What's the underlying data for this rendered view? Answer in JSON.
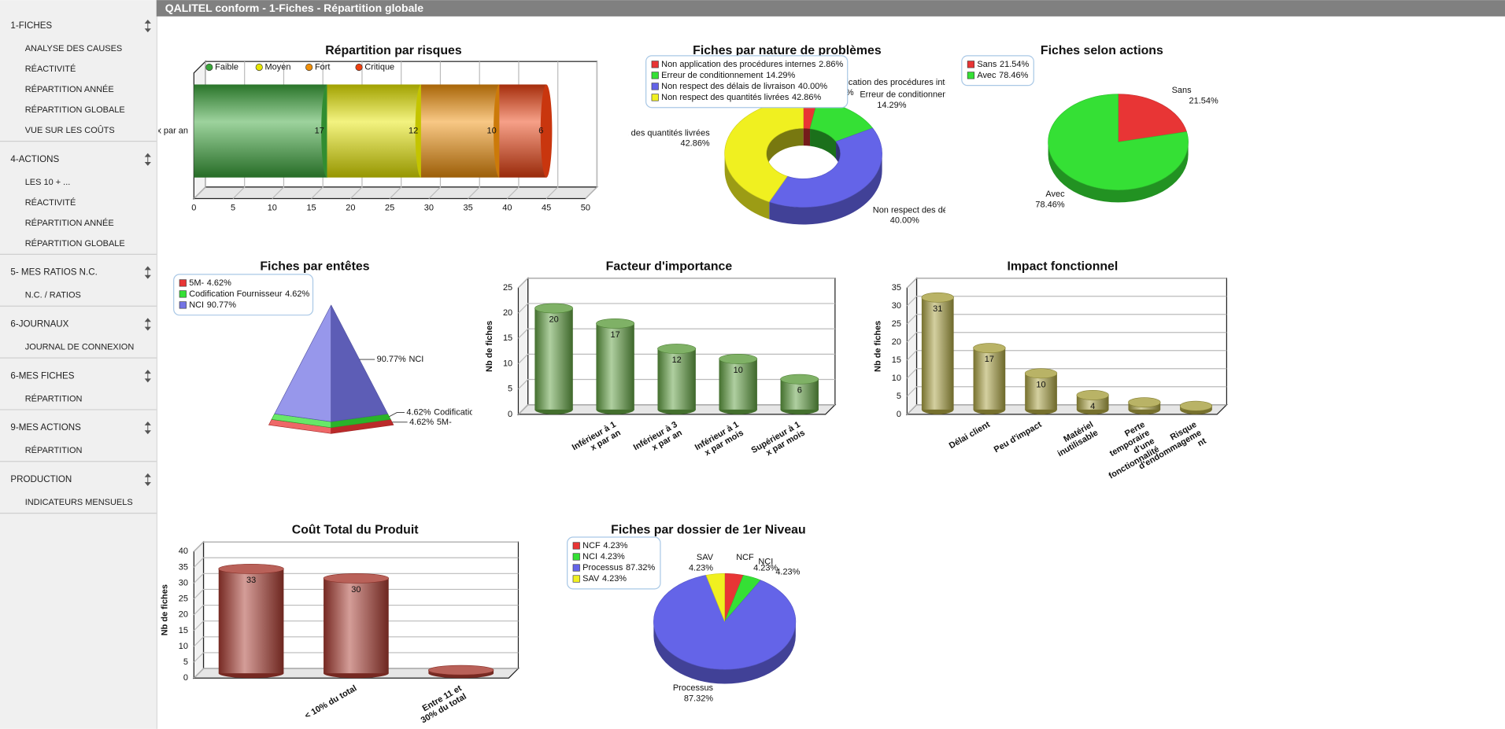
{
  "header": {
    "title": "QALITEL conform - 1-Fiches - Répartition globale"
  },
  "sidebar": [
    {
      "title": "1-FICHES",
      "items": [
        "ANALYSE DES CAUSES",
        "RÉACTIVITÉ",
        "RÉPARTITION ANNÉE",
        "RÉPARTITION GLOBALE",
        "VUE SUR LES COÛTS"
      ]
    },
    {
      "title": "4-ACTIONS",
      "items": [
        "LES 10 + ...",
        "RÉACTIVITÉ",
        "RÉPARTITION ANNÉE",
        "RÉPARTITION GLOBALE"
      ]
    },
    {
      "title": "5- MES RATIOS N.C.",
      "items": [
        "N.C. / RATIOS"
      ]
    },
    {
      "title": "6-JOURNAUX",
      "items": [
        "JOURNAL DE CONNEXION"
      ]
    },
    {
      "title": "6-MES FICHES",
      "items": [
        "RÉPARTITION"
      ]
    },
    {
      "title": "9-MES ACTIONS",
      "items": [
        "RÉPARTITION"
      ]
    },
    {
      "title": "PRODUCTION",
      "items": [
        "INDICATEURS MENSUELS"
      ]
    }
  ],
  "chart_data": [
    {
      "type": "bar",
      "orientation": "horizontal",
      "stacked": true,
      "title": "Répartition par risques",
      "categories": [
        "x par an"
      ],
      "series": [
        {
          "name": "Faible",
          "color": "#3aa63a",
          "values": [
            17
          ]
        },
        {
          "name": "Moyen",
          "color": "#e6e600",
          "values": [
            12
          ]
        },
        {
          "name": "Fort",
          "color": "#f0900a",
          "values": [
            10
          ]
        },
        {
          "name": "Critique",
          "color": "#ec4010",
          "values": [
            6
          ]
        }
      ],
      "xlim": [
        0,
        50
      ],
      "xticks": [
        0,
        5,
        10,
        15,
        20,
        25,
        30,
        35,
        40,
        45,
        50
      ],
      "grid": true,
      "legend": "top"
    },
    {
      "type": "pie",
      "donut": true,
      "title": "Fiches par nature de problèmes",
      "categories": [
        "Non application des procédures internes",
        "Erreur de conditionnement",
        "Non respect des délais de livraison",
        "Non respect des quantités livrées"
      ],
      "values": [
        2.86,
        14.29,
        40.0,
        42.86
      ],
      "value_labels": [
        "2.86%",
        "14.29%",
        "40.00%",
        "42.86%"
      ],
      "colors": [
        "#e83535",
        "#35e035",
        "#6464e8",
        "#f0f020"
      ],
      "legend": "top-left"
    },
    {
      "type": "pie",
      "title": "Fiches selon actions",
      "categories": [
        "Sans",
        "Avec"
      ],
      "values": [
        21.54,
        78.46
      ],
      "value_labels": [
        "21.54%",
        "78.46%"
      ],
      "colors": [
        "#e83535",
        "#35e035"
      ],
      "legend": "top-left"
    },
    {
      "type": "pyramid",
      "title": "Fiches par entêtes",
      "categories": [
        "5M-",
        "Codification Fournisseur",
        "NCI"
      ],
      "values": [
        4.62,
        4.62,
        90.77
      ],
      "value_labels": [
        "4.62%",
        "4.62%",
        "90.77%"
      ],
      "colors": [
        "#e83535",
        "#35e035",
        "#7474e4"
      ],
      "legend": "top-left"
    },
    {
      "type": "bar",
      "title": "Facteur d'importance",
      "ylabel": "Nb de fiches",
      "categories": [
        null,
        "Inférieur à 1 x par an",
        "Inférieur à 3 x par an",
        "Inférieur à 1 x par mois",
        "Supérieur à 1 x par mois"
      ],
      "values": [
        20,
        17,
        12,
        10,
        6
      ],
      "color": "#5f9e40",
      "ylim": [
        0,
        25
      ],
      "yticks": [
        0,
        5,
        10,
        15,
        20,
        25
      ],
      "grid": true
    },
    {
      "type": "bar",
      "title": "Impact fonctionnel",
      "ylabel": "Nb de fiches",
      "categories": [
        null,
        "Délai client",
        "Peu d'impact",
        "Matériel inutilisable",
        "Perte temporaire d'une fonctionnalité",
        "Risque d'endommageme nt"
      ],
      "values": [
        31,
        17,
        10,
        4,
        2,
        1
      ],
      "value_labels": [
        "31",
        "17",
        "10",
        "4",
        null,
        null
      ],
      "color": "#a8a040",
      "ylim": [
        0,
        35
      ],
      "yticks": [
        0,
        5,
        10,
        15,
        20,
        25,
        30,
        35
      ],
      "grid": true
    },
    {
      "type": "bar",
      "title": "Coût Total du Produit",
      "ylabel": "Nb de fiches",
      "categories": [
        null,
        "< 10% du total",
        "Entre 11 et 30% du total"
      ],
      "values": [
        33,
        30,
        1
      ],
      "value_labels": [
        "33",
        "30",
        null
      ],
      "color": "#a83a30",
      "ylim": [
        0,
        40
      ],
      "yticks": [
        0,
        5,
        10,
        15,
        20,
        25,
        30,
        35,
        40
      ],
      "grid": true
    },
    {
      "type": "pie",
      "title": "Fiches par dossier de 1er Niveau",
      "categories": [
        "NCF",
        "NCI",
        "Processus",
        "SAV"
      ],
      "values": [
        4.23,
        4.23,
        87.32,
        4.23
      ],
      "value_labels": [
        "4.23%",
        "4.23%",
        "87.32%",
        "4.23%"
      ],
      "colors": [
        "#e83535",
        "#35e035",
        "#6464e8",
        "#f0f020"
      ],
      "legend": "top-left"
    }
  ]
}
